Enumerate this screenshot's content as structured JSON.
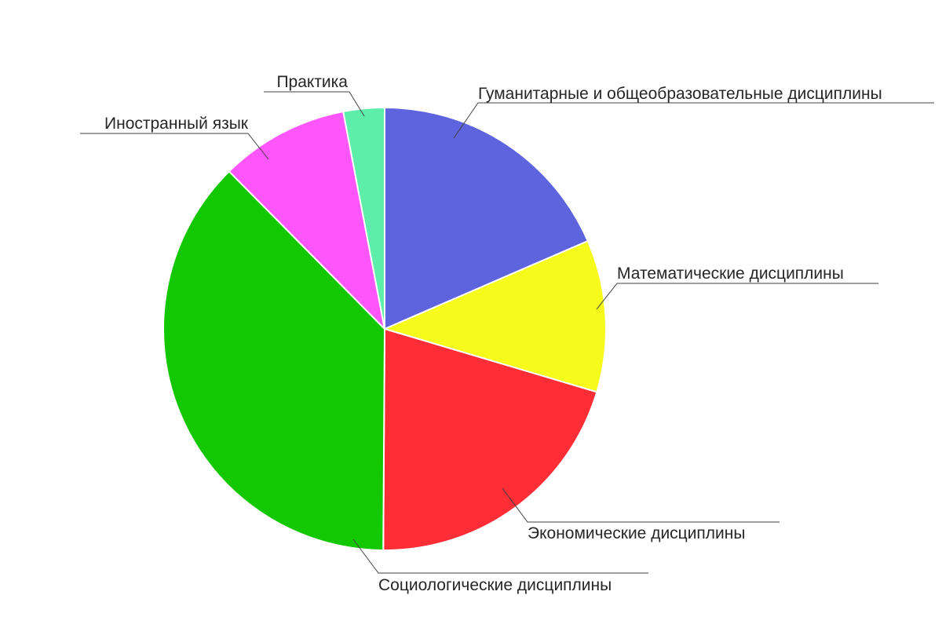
{
  "chart_data": {
    "type": "pie",
    "title": "",
    "start_angle_deg": 0,
    "direction": "clockwise",
    "legend": "none",
    "slices": [
      {
        "label": "Гуманитарные и общеобразовательные дисциплины",
        "value": 18.5,
        "color": "#5d64dd"
      },
      {
        "label": "Математические дисциплины",
        "value": 11.1,
        "color": "#f6fb1b"
      },
      {
        "label": "Экономические дисциплины",
        "value": 20.5,
        "color": "#fe2d36"
      },
      {
        "label": "Социологические дисциплины",
        "value": 37.5,
        "color": "#13c801"
      },
      {
        "label": "Иностранный язык",
        "value": 9.4,
        "color": "#ff56fb"
      },
      {
        "label": "Практика",
        "value": 3.0,
        "color": "#5deea9"
      }
    ]
  }
}
